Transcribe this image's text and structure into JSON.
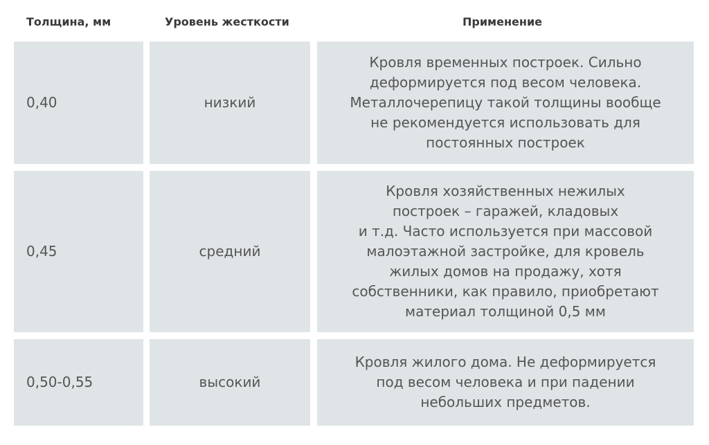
{
  "headers": [
    "Толщина, мм",
    "Уровень жесткости",
    "Применение"
  ],
  "rows": [
    {
      "thickness": "0,40",
      "rigidity": "низкий",
      "usage": "Кровля временных построек. Сильно\nдеформируется под весом человека.\nМеталлочерепицу такой толщины вообще\nне рекомендуется использовать для\nпостоянных построек"
    },
    {
      "thickness": "0,45",
      "rigidity": "средний",
      "usage": "Кровля хозяйственных нежилых\nпостроек – гаражей, кладовых\nи т.д. Часто используется при массовой\nмалоэтажной застройке, для кровель\nжилых домов на продажу, хотя\nсобственники, как правило, приобретают\nматериал толщиной 0,5 мм"
    },
    {
      "thickness": "0,50-0,55",
      "rigidity": "высокий",
      "usage": "Кровля жилого дома. Не деформируется\nпод весом человека и при падении\nнебольших предметов."
    }
  ],
  "colors": {
    "cell_bg": "#dfe4e7",
    "text": "#555555",
    "header_text": "#3a3a3a"
  }
}
